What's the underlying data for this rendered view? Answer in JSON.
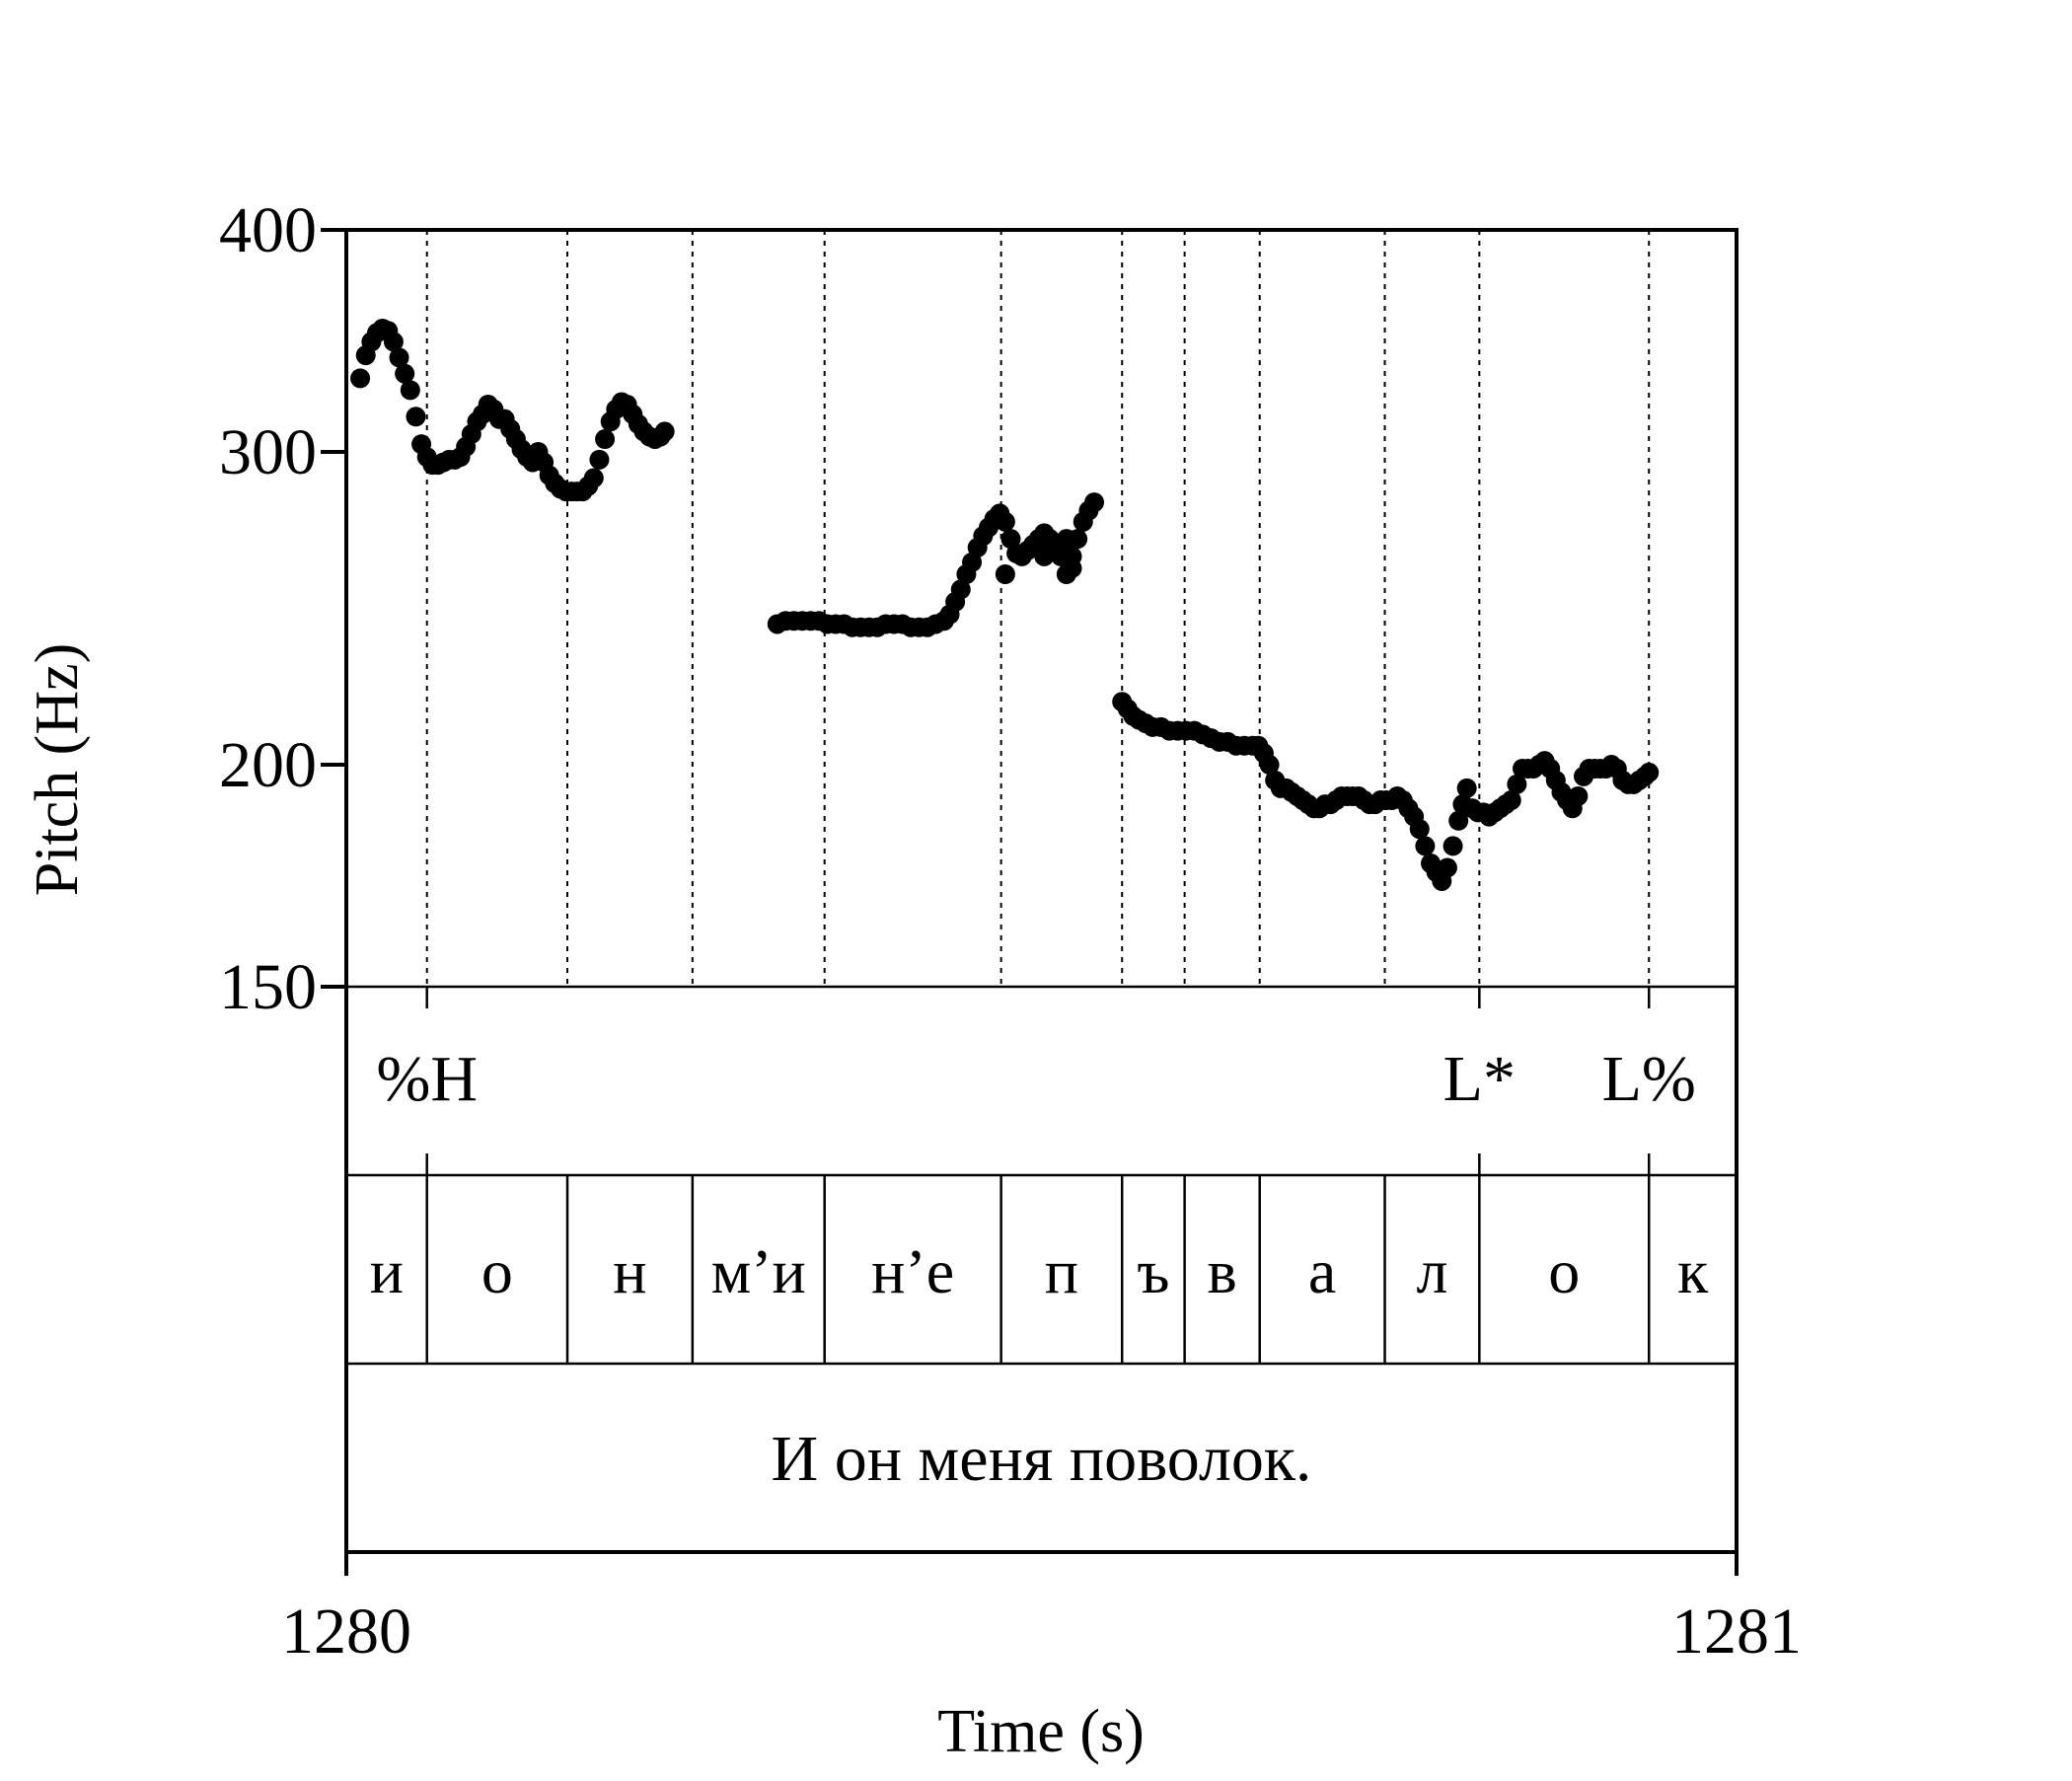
{
  "chart_data": {
    "type": "scatter",
    "title": "",
    "xlabel": "Time (s)",
    "ylabel": "Pitch (Hz)",
    "xlim": [
      1280,
      1281
    ],
    "ylim": [
      150,
      400
    ],
    "y_scale": "log",
    "x_ticks": [
      "1280",
      "1281"
    ],
    "y_ticks": [
      {
        "value": 150,
        "label": "150"
      },
      {
        "value": 200,
        "label": "200"
      },
      {
        "value": 300,
        "label": "300"
      },
      {
        "value": 400,
        "label": "400"
      }
    ],
    "grid": false,
    "boundary_lines": [
      1280.058,
      1280.159,
      1280.249,
      1280.344,
      1280.471,
      1280.558,
      1280.603,
      1280.657,
      1280.747,
      1280.815,
      1280.937
    ],
    "series": [
      {
        "points": [
          [
            1280.01,
            330
          ],
          [
            1280.014,
            340
          ],
          [
            1280.018,
            346
          ],
          [
            1280.022,
            350
          ],
          [
            1280.026,
            352
          ],
          [
            1280.03,
            351
          ],
          [
            1280.034,
            346
          ],
          [
            1280.038,
            339
          ],
          [
            1280.042,
            332
          ],
          [
            1280.046,
            325
          ],
          [
            1280.05,
            314
          ],
          [
            1280.054,
            303
          ],
          [
            1280.058,
            298
          ],
          [
            1280.062,
            295
          ],
          [
            1280.066,
            295
          ],
          [
            1280.07,
            296
          ],
          [
            1280.074,
            297
          ],
          [
            1280.078,
            297
          ],
          [
            1280.082,
            298
          ],
          [
            1280.086,
            302
          ],
          [
            1280.09,
            307
          ],
          [
            1280.094,
            312
          ],
          [
            1280.098,
            315
          ],
          [
            1280.102,
            319
          ],
          [
            1280.106,
            317
          ],
          [
            1280.11,
            313
          ],
          [
            1280.114,
            313
          ],
          [
            1280.118,
            309
          ],
          [
            1280.122,
            305
          ],
          [
            1280.126,
            301
          ],
          [
            1280.13,
            298
          ],
          [
            1280.134,
            296
          ],
          [
            1280.138,
            300
          ],
          [
            1280.142,
            296
          ],
          [
            1280.146,
            291
          ],
          [
            1280.15,
            288
          ],
          [
            1280.154,
            286
          ],
          [
            1280.158,
            285
          ],
          [
            1280.162,
            285
          ],
          [
            1280.166,
            285
          ],
          [
            1280.17,
            285
          ],
          [
            1280.174,
            287
          ],
          [
            1280.178,
            290
          ],
          [
            1280.182,
            297
          ],
          [
            1280.186,
            305
          ],
          [
            1280.19,
            312
          ],
          [
            1280.194,
            317
          ],
          [
            1280.198,
            320
          ],
          [
            1280.202,
            319
          ],
          [
            1280.206,
            315
          ],
          [
            1280.21,
            311
          ],
          [
            1280.214,
            308
          ],
          [
            1280.218,
            306
          ],
          [
            1280.222,
            305
          ],
          [
            1280.226,
            306
          ],
          [
            1280.229,
            308
          ]
        ]
      },
      {
        "points": [
          [
            1280.31,
            240
          ],
          [
            1280.316,
            241
          ],
          [
            1280.322,
            241
          ],
          [
            1280.328,
            241
          ],
          [
            1280.334,
            241
          ],
          [
            1280.34,
            241
          ],
          [
            1280.346,
            240
          ],
          [
            1280.352,
            240
          ],
          [
            1280.358,
            240
          ],
          [
            1280.364,
            239
          ],
          [
            1280.37,
            239
          ],
          [
            1280.376,
            239
          ],
          [
            1280.382,
            239
          ],
          [
            1280.388,
            240
          ],
          [
            1280.394,
            240
          ],
          [
            1280.4,
            240
          ],
          [
            1280.406,
            239
          ],
          [
            1280.412,
            239
          ],
          [
            1280.418,
            239
          ],
          [
            1280.424,
            240
          ],
          [
            1280.43,
            241
          ],
          [
            1280.434,
            243
          ],
          [
            1280.438,
            247
          ],
          [
            1280.442,
            251
          ],
          [
            1280.446,
            256
          ],
          [
            1280.45,
            260
          ],
          [
            1280.454,
            265
          ],
          [
            1280.458,
            269
          ],
          [
            1280.462,
            272
          ],
          [
            1280.466,
            275
          ],
          [
            1280.47,
            277
          ],
          [
            1280.474,
            274
          ],
          [
            1280.478,
            268
          ],
          [
            1280.482,
            263
          ],
          [
            1280.486,
            262
          ],
          [
            1280.49,
            264
          ],
          [
            1280.494,
            266
          ],
          [
            1280.498,
            268
          ],
          [
            1280.502,
            270
          ],
          [
            1280.506,
            268
          ],
          [
            1280.51,
            265
          ],
          [
            1280.514,
            262
          ],
          [
            1280.518,
            268
          ],
          [
            1280.522,
            262
          ],
          [
            1280.526,
            268
          ],
          [
            1280.53,
            274
          ],
          [
            1280.534,
            278
          ],
          [
            1280.538,
            281
          ],
          [
            1280.474,
            256
          ],
          [
            1280.502,
            262
          ],
          [
            1280.514,
            266
          ],
          [
            1280.522,
            258
          ],
          [
            1280.518,
            256
          ]
        ]
      },
      {
        "points": [
          [
            1280.558,
            217
          ],
          [
            1280.562,
            215
          ],
          [
            1280.566,
            213
          ],
          [
            1280.57,
            212
          ],
          [
            1280.575,
            211
          ],
          [
            1280.58,
            210
          ],
          [
            1280.586,
            210
          ],
          [
            1280.592,
            209
          ],
          [
            1280.598,
            209
          ],
          [
            1280.604,
            209
          ],
          [
            1280.61,
            209
          ],
          [
            1280.616,
            208
          ],
          [
            1280.622,
            207
          ],
          [
            1280.628,
            206
          ],
          [
            1280.634,
            206
          ],
          [
            1280.64,
            205
          ],
          [
            1280.646,
            205
          ],
          [
            1280.652,
            205
          ],
          [
            1280.656,
            205
          ],
          [
            1280.66,
            203
          ],
          [
            1280.664,
            200
          ],
          [
            1280.668,
            196
          ],
          [
            1280.672,
            194
          ],
          [
            1280.676,
            194
          ],
          [
            1280.68,
            193
          ],
          [
            1280.684,
            192
          ],
          [
            1280.688,
            191
          ],
          [
            1280.692,
            190
          ],
          [
            1280.696,
            189
          ],
          [
            1280.7,
            189
          ],
          [
            1280.704,
            190
          ],
          [
            1280.708,
            190
          ],
          [
            1280.712,
            191
          ],
          [
            1280.716,
            192
          ],
          [
            1280.72,
            192
          ],
          [
            1280.724,
            192
          ],
          [
            1280.728,
            192
          ],
          [
            1280.732,
            191
          ],
          [
            1280.736,
            190
          ],
          [
            1280.74,
            190
          ],
          [
            1280.744,
            191
          ],
          [
            1280.748,
            191
          ],
          [
            1280.752,
            191
          ],
          [
            1280.756,
            192
          ],
          [
            1280.76,
            191
          ],
          [
            1280.764,
            189
          ],
          [
            1280.768,
            187
          ],
          [
            1280.772,
            184
          ],
          [
            1280.776,
            180
          ],
          [
            1280.78,
            176
          ],
          [
            1280.784,
            174
          ],
          [
            1280.788,
            172
          ],
          [
            1280.792,
            175
          ],
          [
            1280.796,
            180
          ],
          [
            1280.8,
            186
          ],
          [
            1280.803,
            190
          ],
          [
            1280.806,
            194
          ],
          [
            1280.81,
            189
          ],
          [
            1280.814,
            188
          ],
          [
            1280.818,
            188
          ],
          [
            1280.822,
            187
          ],
          [
            1280.826,
            188
          ],
          [
            1280.83,
            189
          ],
          [
            1280.834,
            190
          ],
          [
            1280.838,
            191
          ],
          [
            1280.842,
            195
          ],
          [
            1280.846,
            199
          ],
          [
            1280.85,
            199
          ],
          [
            1280.854,
            199
          ],
          [
            1280.858,
            200
          ],
          [
            1280.862,
            201
          ],
          [
            1280.866,
            199
          ],
          [
            1280.87,
            196
          ],
          [
            1280.874,
            193
          ],
          [
            1280.878,
            191
          ],
          [
            1280.882,
            189
          ],
          [
            1280.886,
            192
          ],
          [
            1280.89,
            197
          ],
          [
            1280.894,
            199
          ],
          [
            1280.898,
            199
          ],
          [
            1280.902,
            199
          ],
          [
            1280.906,
            199
          ],
          [
            1280.91,
            200
          ],
          [
            1280.914,
            199
          ],
          [
            1280.918,
            196
          ],
          [
            1280.922,
            195
          ],
          [
            1280.926,
            195
          ],
          [
            1280.93,
            196
          ],
          [
            1280.934,
            197
          ],
          [
            1280.937,
            198
          ]
        ]
      }
    ],
    "tones": [
      {
        "label": "%H",
        "x": 1280.058
      },
      {
        "label": "L*",
        "x": 1280.815
      },
      {
        "label": "L%",
        "x": 1280.937
      }
    ],
    "segments": [
      {
        "label": "и",
        "start": 1280.0,
        "end": 1280.058
      },
      {
        "label": "о",
        "start": 1280.058,
        "end": 1280.159
      },
      {
        "label": "н",
        "start": 1280.159,
        "end": 1280.249
      },
      {
        "label": "м’и",
        "start": 1280.249,
        "end": 1280.344
      },
      {
        "label": "н’е",
        "start": 1280.344,
        "end": 1280.471
      },
      {
        "label": "п",
        "start": 1280.471,
        "end": 1280.558
      },
      {
        "label": "ъ",
        "start": 1280.558,
        "end": 1280.603
      },
      {
        "label": "в",
        "start": 1280.603,
        "end": 1280.657
      },
      {
        "label": "а",
        "start": 1280.657,
        "end": 1280.747
      },
      {
        "label": "л",
        "start": 1280.747,
        "end": 1280.815
      },
      {
        "label": "о",
        "start": 1280.815,
        "end": 1280.937
      },
      {
        "label": "к",
        "start": 1280.937,
        "end": 1281.0
      }
    ],
    "sentence": "И он меня поволок."
  }
}
